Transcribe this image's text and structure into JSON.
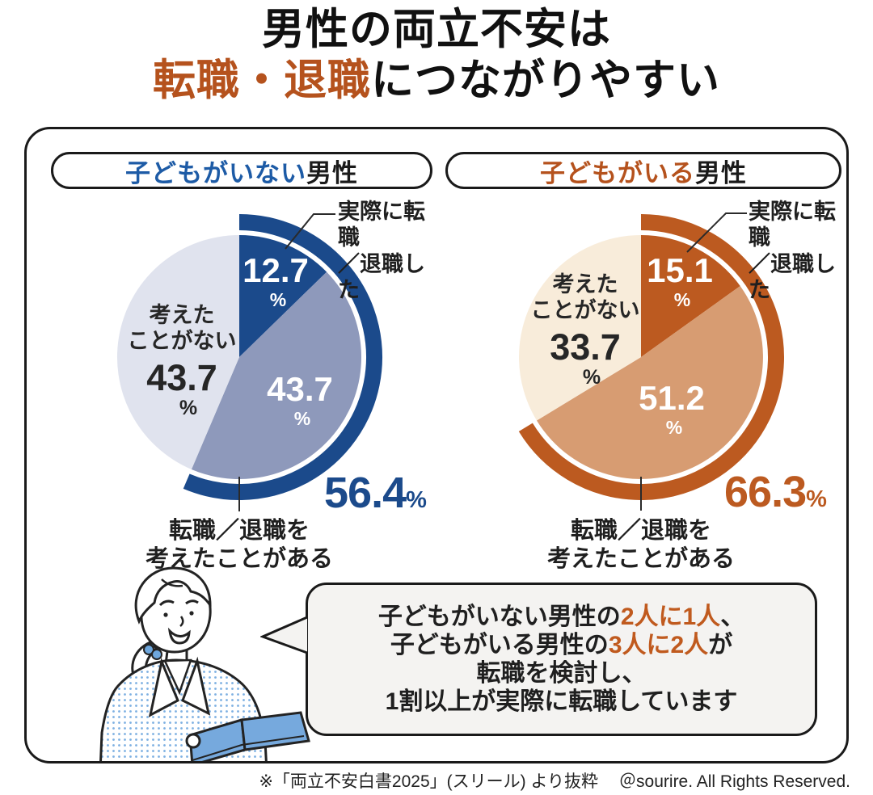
{
  "unit": "%",
  "title": {
    "line1": "男性の両立不安は",
    "line2_accent": "転職・退職",
    "line2_rest": "につながりやすい",
    "accent_color": "#b5521d"
  },
  "chart_data": [
    {
      "type": "pie",
      "group_label": {
        "accent": "子どもがいない",
        "rest": "男性"
      },
      "accent_color": "#1d5ba6",
      "arc_color": "#1b4a8b",
      "start_angle_deg": 0,
      "direction": "clockwise",
      "slices": [
        {
          "name": "実際に転職／退職した",
          "value": 12.7,
          "display": "12.7",
          "color": "#1b4a8b"
        },
        {
          "name": "転職／退職を考えたことがある",
          "value": 43.7,
          "display": "43.7",
          "color": "#8e99bb"
        },
        {
          "name": "考えたことがない",
          "value": 43.7,
          "display": "43.7",
          "color": "#e0e3ee"
        }
      ],
      "callout": {
        "line1": "実際に転職",
        "line2": "／退職した"
      },
      "none_label": {
        "line1": "考えた",
        "line2": "ことがない"
      },
      "considered_label": {
        "line1": "転職／退職を",
        "line2": "考えたことがある"
      },
      "total": {
        "value": 56.4,
        "display": "56.4"
      }
    },
    {
      "type": "pie",
      "group_label": {
        "accent": "子どもがいる",
        "rest": "男性"
      },
      "accent_color": "#b5521d",
      "arc_color": "#bc5a20",
      "start_angle_deg": 0,
      "direction": "clockwise",
      "slices": [
        {
          "name": "実際に転職／退職した",
          "value": 15.1,
          "display": "15.1",
          "color": "#bc5a20"
        },
        {
          "name": "転職／退職を考えたことがある",
          "value": 51.2,
          "display": "51.2",
          "color": "#d79c72"
        },
        {
          "name": "考えたことがない",
          "value": 33.7,
          "display": "33.7",
          "color": "#f8ecda"
        }
      ],
      "callout": {
        "line1": "実際に転職",
        "line2": "／退職した"
      },
      "none_label": {
        "line1": "考えた",
        "line2": "ことがない"
      },
      "considered_label": {
        "line1": "転職／退職を",
        "line2": "考えたことがある"
      },
      "total": {
        "value": 66.3,
        "display": "66.3"
      }
    }
  ],
  "bubble": {
    "line1_pre": "子どもがいない男性の",
    "line1_accent": "2人に1人",
    "line1_suffix": "、",
    "line2_pre": "子どもがいる男性の",
    "line2_accent": "3人に2人",
    "line2_suffix": "が",
    "line3": "転職を検討し、",
    "line4": "1割以上が実際に転職しています",
    "accent_color": "#c05a1e"
  },
  "footer": {
    "source": "※「両立不安白書2025」(スリール) より抜粋",
    "credit": "＠sourire. All Rights Reserved."
  }
}
